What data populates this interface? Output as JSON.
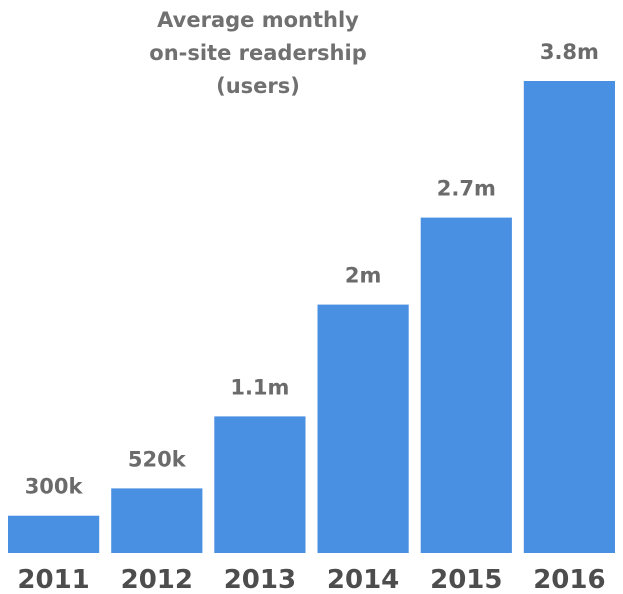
{
  "chart_data": {
    "type": "bar",
    "title_lines": [
      "Average monthly",
      "on-site readership",
      "(users)"
    ],
    "categories": [
      "2011",
      "2012",
      "2013",
      "2014",
      "2015",
      "2016"
    ],
    "values": [
      300000,
      520000,
      1100000,
      2000000,
      2700000,
      3800000
    ],
    "value_labels": [
      "300k",
      "520k",
      "1.1m",
      "2m",
      "2.7m",
      "3.8m"
    ],
    "ylim": [
      0,
      3800000
    ],
    "xlabel": "",
    "ylabel": "",
    "grid": false,
    "legend": "none",
    "bar_color": "#4a90e2"
  }
}
